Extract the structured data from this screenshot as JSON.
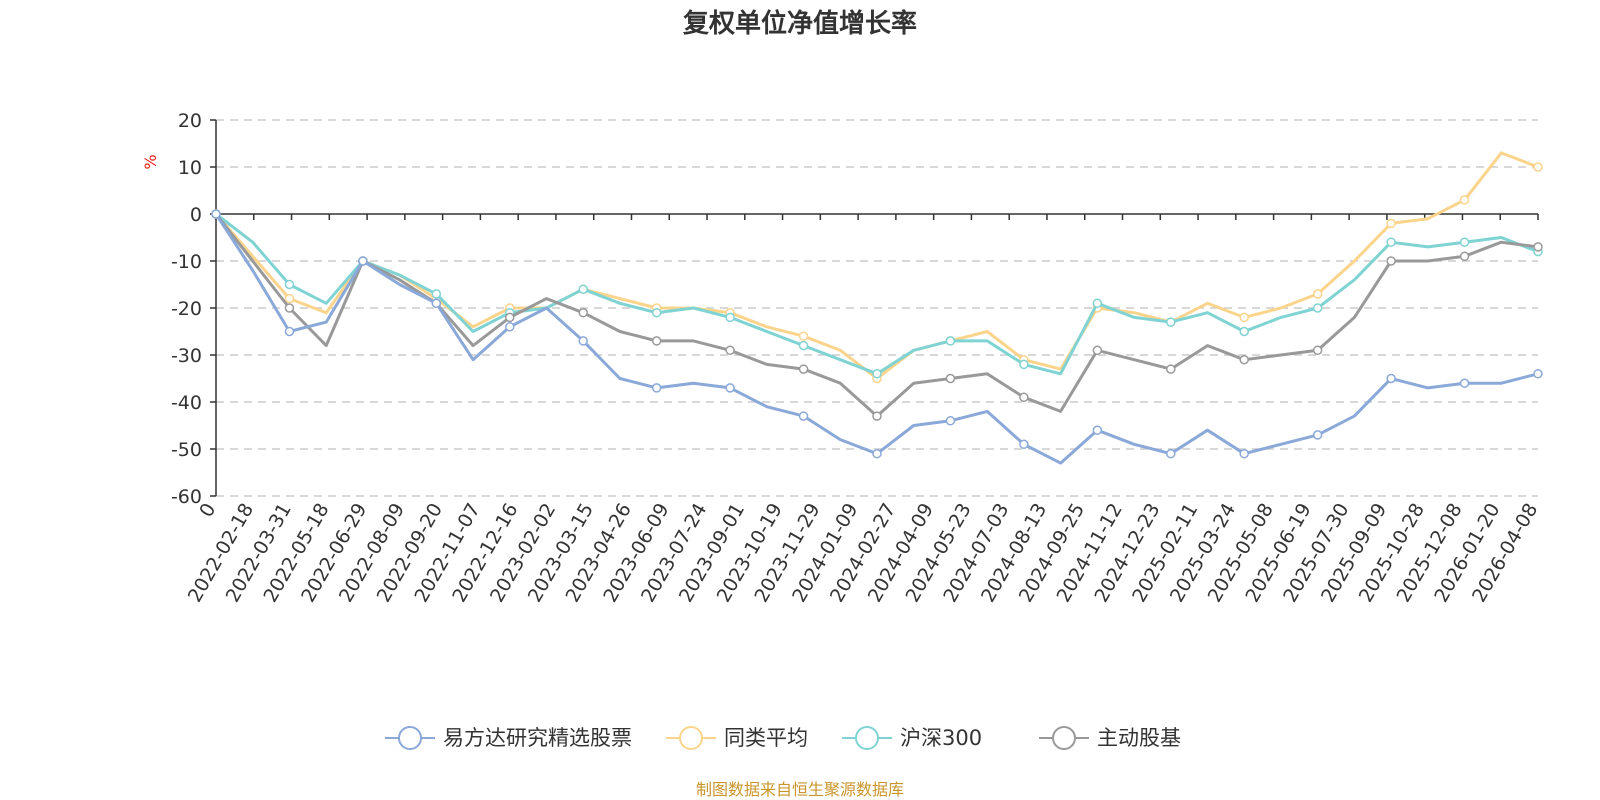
{
  "chart_data": {
    "type": "line",
    "title": "复权单位净值增长率",
    "ylabel": "%",
    "ylim": [
      -60,
      20
    ],
    "y_ticks": [
      20,
      10,
      0,
      -10,
      -20,
      -30,
      -40,
      -50,
      -60
    ],
    "x_ticks": [
      "0",
      "2022-02-18",
      "2022-03-31",
      "2022-05-18",
      "2022-06-29",
      "2022-08-09",
      "2022-09-20",
      "2022-11-07",
      "2022-12-16",
      "2023-02-02",
      "2023-03-15",
      "2023-04-26",
      "2023-06-09",
      "2023-07-24",
      "2023-09-01",
      "2023-10-19",
      "2023-11-29",
      "2024-01-09",
      "2024-02-27",
      "2024-04-09",
      "2024-05-23",
      "2024-07-03",
      "2024-08-13",
      "2024-09-25",
      "2024-11-12",
      "2024-12-23",
      "2025-02-11",
      "2025-03-24",
      "2025-05-08",
      "2025-06-19",
      "2025-07-30",
      "2025-09-09",
      "2025-10-28",
      "2025-12-08",
      "2026-01-20",
      "2026-04-08"
    ],
    "grid": true,
    "legend_position": "bottom",
    "series": [
      {
        "name": "易方达研究精选股票",
        "color": "#8aa8d8",
        "values": [
          0,
          -12,
          -25,
          -23,
          -10,
          -15,
          -19,
          -31,
          -24,
          -20,
          -27,
          -35,
          -37,
          -36,
          -37,
          -41,
          -43,
          -48,
          -51,
          -45,
          -44,
          -42,
          -49,
          -53,
          -46,
          -49,
          -51,
          -46,
          -51,
          -49,
          -47,
          -43,
          -35,
          -37,
          -36,
          -36,
          -34
        ]
      },
      {
        "name": "同类平均",
        "color": "#fbd48c",
        "values": [
          0,
          -9,
          -18,
          -21,
          -10,
          -13,
          -18,
          -24,
          -20,
          -20,
          -16,
          -18,
          -20,
          -20,
          -21,
          -24,
          -26,
          -29,
          -35,
          -29,
          -27,
          -25,
          -31,
          -33,
          -20,
          -21,
          -23,
          -19,
          -22,
          -20,
          -17,
          -10,
          -2,
          -1,
          3,
          13,
          10
        ]
      },
      {
        "name": "沪深300",
        "color": "#7fd3d3",
        "values": [
          0,
          -6,
          -15,
          -19,
          -10,
          -13,
          -17,
          -25,
          -21,
          -20,
          -16,
          -19,
          -21,
          -20,
          -22,
          -25,
          -28,
          -31,
          -34,
          -29,
          -27,
          -27,
          -32,
          -34,
          -19,
          -22,
          -23,
          -21,
          -25,
          -22,
          -20,
          -14,
          -6,
          -7,
          -6,
          -5,
          -8
        ]
      },
      {
        "name": "主动股基",
        "color": "#999999",
        "values": [
          0,
          -10,
          -20,
          -28,
          -10,
          -14,
          -19,
          -28,
          -22,
          -18,
          -21,
          -25,
          -27,
          -27,
          -29,
          -32,
          -33,
          -36,
          -43,
          -36,
          -35,
          -34,
          -39,
          -42,
          -29,
          -31,
          -33,
          -28,
          -31,
          -30,
          -29,
          -22,
          -10,
          -10,
          -9,
          -6,
          -7
        ]
      }
    ]
  },
  "footer": {
    "source": "制图数据来自恒生聚源数据库"
  }
}
